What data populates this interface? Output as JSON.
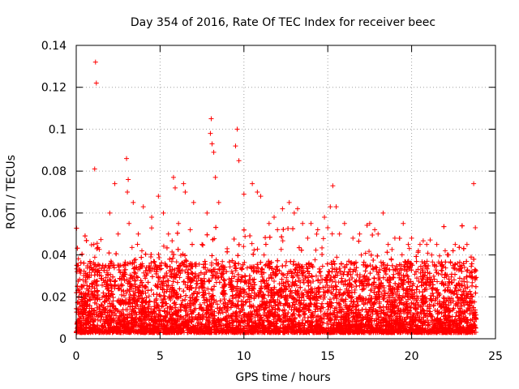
{
  "chart_data": {
    "type": "scatter",
    "title": "Day 354 of 2016, Rate Of TEC Index for receiver beec",
    "xlabel": "GPS time / hours",
    "ylabel": "ROTI / TECUs",
    "xlim": [
      0,
      25
    ],
    "ylim": [
      0,
      0.14
    ],
    "xticks": [
      0,
      5,
      10,
      15,
      20,
      25
    ],
    "xtick_labels": [
      "0",
      "5",
      "10",
      "15",
      "20",
      "25"
    ],
    "yticks": [
      0,
      0.02,
      0.04,
      0.06,
      0.08,
      0.1,
      0.12,
      0.14
    ],
    "ytick_labels": [
      "0",
      "0.02",
      "0.04",
      "0.06",
      "0.08",
      "0.1",
      "0.12",
      "0.14"
    ],
    "grid": true,
    "marker": "+",
    "color": "#ff0000",
    "series": [
      {
        "name": "ROTI",
        "x": [
          0.05,
          0.15,
          0.3,
          0.5,
          0.8,
          1.05,
          1.1,
          1.15,
          1.2,
          1.5,
          2.0,
          2.3,
          2.5,
          3.0,
          3.05,
          3.1,
          3.15,
          3.4,
          3.7,
          4.0,
          4.5,
          4.9,
          5.2,
          5.5,
          5.8,
          5.9,
          6.1,
          6.4,
          6.5,
          6.8,
          7.0,
          7.5,
          7.8,
          8.0,
          8.05,
          8.1,
          8.2,
          8.3,
          8.5,
          9.0,
          9.5,
          9.6,
          9.7,
          10.0,
          10.5,
          10.8,
          11.0,
          11.2,
          11.5,
          11.8,
          12.0,
          12.3,
          12.7,
          13.0,
          13.2,
          13.5,
          13.8,
          14.0,
          14.4,
          14.8,
          15.0,
          15.15,
          15.3,
          15.5,
          15.7,
          16.0,
          16.5,
          16.9,
          17.0,
          17.5,
          17.8,
          18.0,
          18.3,
          18.6,
          19.0,
          19.5,
          19.8,
          20.0,
          20.4,
          20.5,
          20.9,
          21.2,
          21.5,
          21.8,
          22.0,
          22.2,
          22.6,
          23.0,
          23.3,
          23.6,
          23.7,
          23.8
        ],
        "y": [
          0.032,
          0.02,
          0.025,
          0.018,
          0.025,
          0.045,
          0.081,
          0.132,
          0.122,
          0.03,
          0.06,
          0.074,
          0.05,
          0.086,
          0.07,
          0.076,
          0.055,
          0.065,
          0.05,
          0.063,
          0.058,
          0.068,
          0.06,
          0.05,
          0.077,
          0.072,
          0.055,
          0.074,
          0.07,
          0.052,
          0.065,
          0.045,
          0.06,
          0.098,
          0.105,
          0.093,
          0.089,
          0.077,
          0.065,
          0.043,
          0.092,
          0.1,
          0.085,
          0.069,
          0.074,
          0.07,
          0.068,
          0.04,
          0.055,
          0.058,
          0.052,
          0.062,
          0.065,
          0.06,
          0.062,
          0.055,
          0.048,
          0.055,
          0.052,
          0.058,
          0.053,
          0.063,
          0.073,
          0.063,
          0.05,
          0.055,
          0.048,
          0.05,
          0.04,
          0.055,
          0.052,
          0.05,
          0.06,
          0.045,
          0.048,
          0.055,
          0.045,
          0.048,
          0.042,
          0.045,
          0.045,
          0.04,
          0.045,
          0.035,
          0.042,
          0.04,
          0.045,
          0.035,
          0.045,
          0.032,
          0.074,
          0.053
        ]
      }
    ]
  }
}
